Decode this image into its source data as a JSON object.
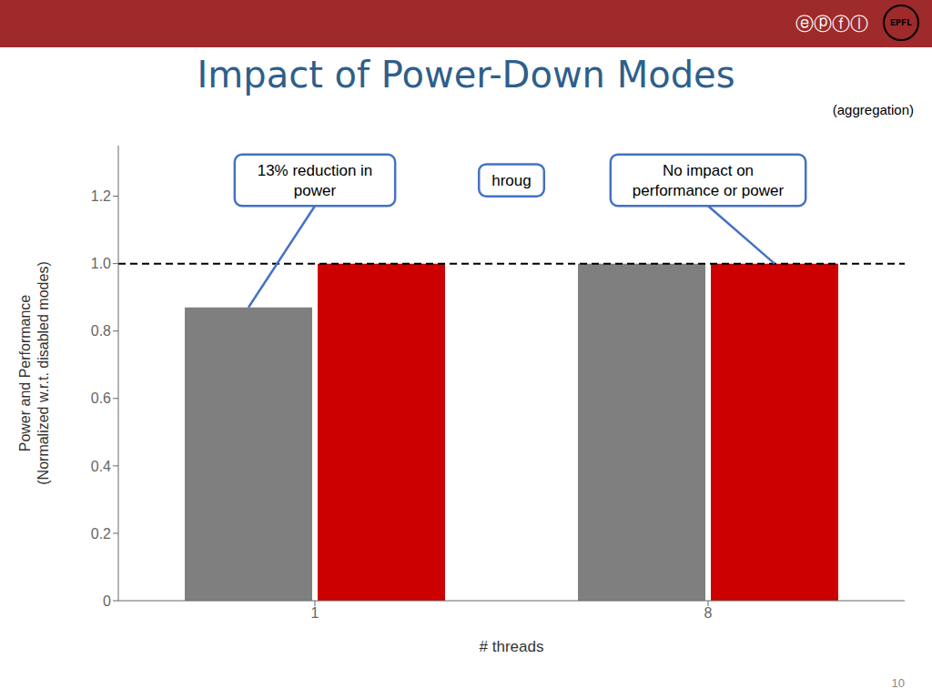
{
  "chart_data": {
    "type": "bar",
    "title": "Impact of Power-Down Modes",
    "subtitle": "(aggregation)",
    "title_color": "#2e5f8a",
    "xlabel": "# threads",
    "ylabel": "Power and Performance\n(Normalized w.r.t. disabled modes)",
    "categories": [
      "1",
      "8"
    ],
    "series": [
      {
        "color": "#7f7f7f",
        "values": [
          0.87,
          1.0
        ]
      },
      {
        "color": "#cc0000",
        "values": [
          1.0,
          1.0
        ]
      }
    ],
    "ylim": [
      0,
      1.35
    ],
    "yticks": [
      0,
      0.2,
      0.4,
      0.6,
      0.8,
      {
        "value": 1.0,
        "label": "1.0"
      },
      1.2
    ],
    "grid": false,
    "hlines": [
      1.0
    ],
    "annotations": [
      {
        "text": "13% reduction in\npower",
        "category": "1",
        "value": 0.87
      },
      {
        "text": "hroug"
      },
      {
        "text": "No impact on\nperformance or power",
        "category": "8",
        "value": 1.0
      }
    ],
    "annotation_color": "#4472c4",
    "header": [
      "ⓔⓟⓕⓛ",
      "EPFL"
    ],
    "header_color": "#9e2a2b",
    "page_number": "10"
  }
}
